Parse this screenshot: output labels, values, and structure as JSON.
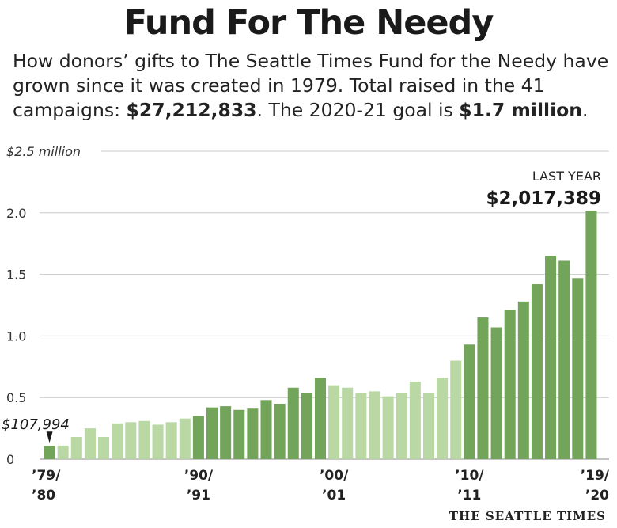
{
  "header": {
    "title": "Fund For The Needy",
    "subtitle_1": "How donors’ gifts to The Seattle Times Fund for the Needy have grown since it was created in 1979. Total raised in the 41 campaigns: ",
    "subtitle_total": "$27,212,833",
    "subtitle_2": ". The 2020-21 goal is ",
    "subtitle_goal": "$1.7 million",
    "subtitle_3": "."
  },
  "annotations": {
    "first_value": "$107,994",
    "last_label": "LAST YEAR",
    "last_value": "$2,017,389"
  },
  "footer": {
    "credit": "THE SEATTLE TIMES"
  },
  "colors": {
    "dark_bar": "#72a55a",
    "light_bar": "#b9d8a4",
    "grid": "#c8c8c8"
  },
  "chart_data": {
    "type": "bar",
    "ylim": [
      0,
      2.5
    ],
    "y_unit": "$ million",
    "grid": true,
    "y_ticks": [
      {
        "value": 0,
        "label": "0"
      },
      {
        "value": 0.5,
        "label": "0.5"
      },
      {
        "value": 1.0,
        "label": "1.0"
      },
      {
        "value": 1.5,
        "label": "1.5"
      },
      {
        "value": 2.0,
        "label": "2.0"
      },
      {
        "value": 2.5,
        "label": "$2.5 million"
      }
    ],
    "x_ticks": [
      {
        "index": 0,
        "line1": "’79/",
        "line2": "’80"
      },
      {
        "index": 11,
        "line1": "’90/",
        "line2": "’91"
      },
      {
        "index": 21,
        "line1": "’00/",
        "line2": "’01"
      },
      {
        "index": 31,
        "line1": "’10/",
        "line2": "’11"
      },
      {
        "index": 40,
        "line1": "’19/",
        "line2": "’20"
      }
    ],
    "categories": [
      "1979/80",
      "1980/81",
      "1981/82",
      "1982/83",
      "1983/84",
      "1984/85",
      "1985/86",
      "1986/87",
      "1987/88",
      "1988/89",
      "1989/90",
      "1990/91",
      "1991/92",
      "1992/93",
      "1993/94",
      "1994/95",
      "1995/96",
      "1996/97",
      "1997/98",
      "1998/99",
      "1999/00",
      "2000/01",
      "2001/02",
      "2002/03",
      "2003/04",
      "2004/05",
      "2005/06",
      "2006/07",
      "2007/08",
      "2008/09",
      "2009/10",
      "2010/11",
      "2011/12",
      "2012/13",
      "2013/14",
      "2014/15",
      "2015/16",
      "2016/17",
      "2017/18",
      "2018/19",
      "2019/20"
    ],
    "values": [
      0.108,
      0.11,
      0.18,
      0.25,
      0.18,
      0.29,
      0.3,
      0.31,
      0.28,
      0.3,
      0.33,
      0.35,
      0.42,
      0.43,
      0.4,
      0.41,
      0.48,
      0.45,
      0.58,
      0.54,
      0.66,
      0.6,
      0.58,
      0.54,
      0.55,
      0.51,
      0.54,
      0.63,
      0.54,
      0.66,
      0.8,
      0.93,
      1.15,
      1.07,
      1.21,
      1.28,
      1.42,
      1.65,
      1.61,
      1.47,
      2.017
    ],
    "shade": [
      "dark",
      "light",
      "light",
      "light",
      "light",
      "light",
      "light",
      "light",
      "light",
      "light",
      "light",
      "dark",
      "dark",
      "dark",
      "dark",
      "dark",
      "dark",
      "dark",
      "dark",
      "dark",
      "dark",
      "light",
      "light",
      "light",
      "light",
      "light",
      "light",
      "light",
      "light",
      "light",
      "light",
      "dark",
      "dark",
      "dark",
      "dark",
      "dark",
      "dark",
      "dark",
      "dark",
      "dark",
      "dark"
    ]
  }
}
